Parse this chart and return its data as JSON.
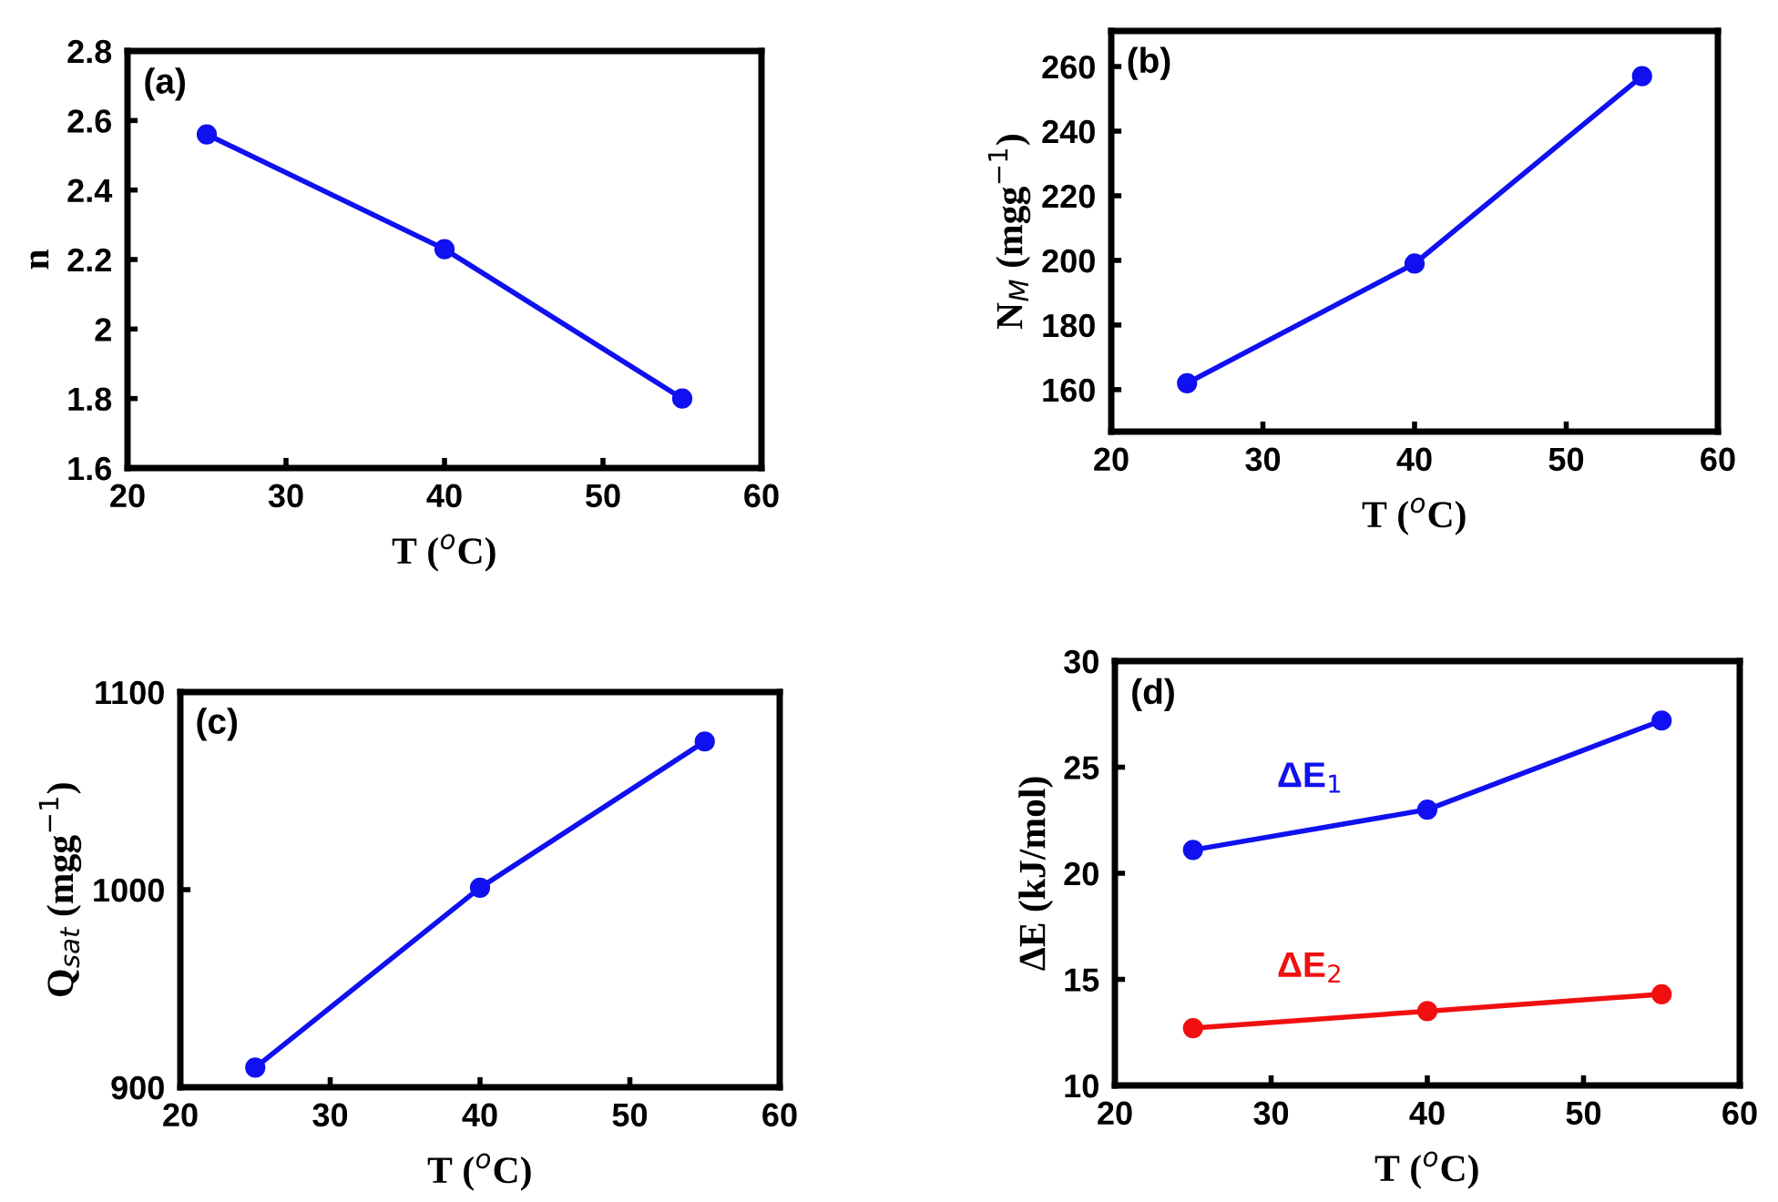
{
  "chart_data": [
    {
      "type": "line",
      "marker": "circle",
      "xlabel": "T ($^{o}$C)",
      "ylabel": "n",
      "annotations": [
        "(a)"
      ],
      "x": [
        25,
        40,
        55
      ],
      "xlim": [
        20,
        60
      ],
      "xticks": [
        20,
        30,
        40,
        50,
        60
      ],
      "ylim": [
        1.6,
        2.8
      ],
      "yticks": [
        1.6,
        1.8,
        2,
        2.2,
        2.4,
        2.6,
        2.8
      ],
      "series": [
        {
          "color": "#1010f0",
          "values": [
            2.56,
            2.23,
            1.8
          ]
        }
      ]
    },
    {
      "type": "line",
      "marker": "circle",
      "xlabel": "T ($^{o}$C)",
      "ylabel": "N$_{M}$ (mgg$^{−1}$)",
      "annotations": [
        "(b)"
      ],
      "x": [
        25,
        40,
        55
      ],
      "xlim": [
        20,
        60
      ],
      "xticks": [
        20,
        30,
        40,
        50,
        60
      ],
      "ylim": [
        147,
        271
      ],
      "yticks": [
        160,
        180,
        200,
        220,
        240,
        260
      ],
      "series": [
        {
          "color": "#1010f0",
          "values": [
            162,
            199,
            257
          ]
        }
      ]
    },
    {
      "type": "line",
      "marker": "circle",
      "xlabel": "T ($^{o}$C)",
      "ylabel": "Q$_{sat}$ (mgg$^{−1}$)",
      "annotations": [
        "(c)"
      ],
      "x": [
        25,
        40,
        55
      ],
      "xlim": [
        20,
        60
      ],
      "xticks": [
        20,
        30,
        40,
        50,
        60
      ],
      "ylim": [
        900,
        1100
      ],
      "yticks": [
        900,
        1000,
        1100
      ],
      "series": [
        {
          "color": "#1010f0",
          "values": [
            910,
            1001,
            1075
          ]
        }
      ]
    },
    {
      "type": "line",
      "marker": "circle",
      "xlabel": "T ($^{o}$C)",
      "ylabel": "ΔE (kJ/mol)",
      "annotations": [
        "(d)"
      ],
      "x": [
        25,
        40,
        55
      ],
      "xlim": [
        20,
        60
      ],
      "xticks": [
        20,
        30,
        40,
        50,
        60
      ],
      "ylim": [
        10,
        30
      ],
      "yticks": [
        10,
        15,
        20,
        25,
        30
      ],
      "series": [
        {
          "name": "ΔE$_{1}$",
          "color": "#1010f0",
          "values": [
            21.1,
            23.0,
            27.2
          ]
        },
        {
          "name": "ΔE$_{2}$",
          "color": "#f01010",
          "values": [
            12.7,
            13.5,
            14.3
          ]
        }
      ]
    }
  ]
}
